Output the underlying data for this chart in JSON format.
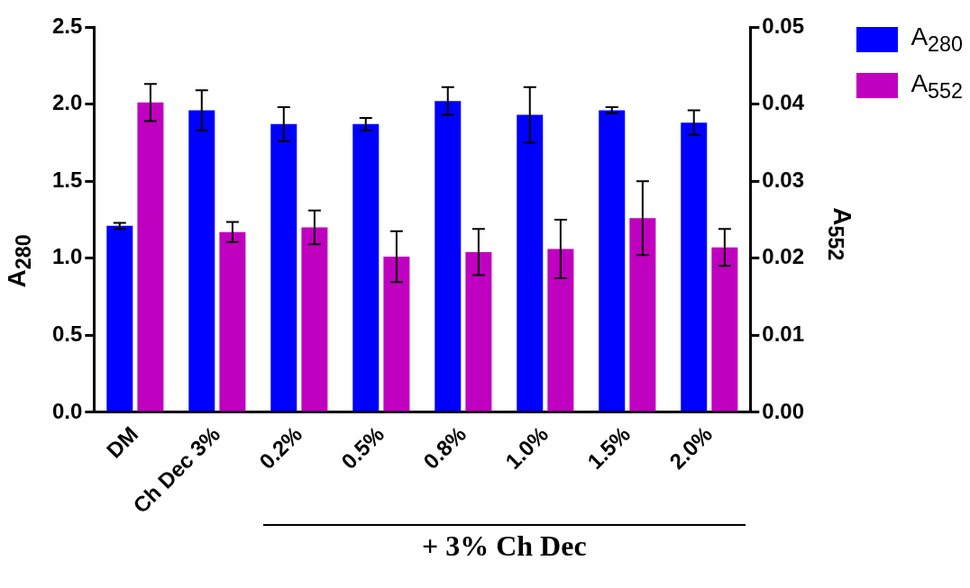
{
  "chart_data": {
    "type": "bar",
    "categories": [
      "DM",
      "Ch Dec 3%",
      "0.2%",
      "0.5%",
      "0.8%",
      "1.0%",
      "1.5%",
      "2.0%"
    ],
    "series": [
      {
        "name": "A$_{280}$",
        "color": "#0000ff",
        "values": [
          1.21,
          1.96,
          1.87,
          1.87,
          2.02,
          1.93,
          1.96,
          1.88
        ],
        "errors": [
          0.02,
          0.13,
          0.11,
          0.04,
          0.09,
          0.18,
          0.02,
          0.08
        ]
      },
      {
        "name": "A$_{552}$",
        "color": "#c000c0",
        "axis": "y2",
        "values": [
          0.0402,
          0.0234,
          0.024,
          0.0202,
          0.0208,
          0.0212,
          0.0252,
          0.0214
        ],
        "errors": [
          0.0024,
          0.0013,
          0.0022,
          0.0033,
          0.003,
          0.0038,
          0.0048,
          0.0024
        ]
      }
    ],
    "ylabel": "A$_{280}$",
    "y2label": "A$_{552}$",
    "ylim": [
      0,
      2.5
    ],
    "yticks": [
      {
        "value": 0,
        "label": "0.0"
      },
      {
        "value": 0.5,
        "label": "0.5"
      },
      {
        "value": 1,
        "label": "1.0"
      },
      {
        "value": 1.5,
        "label": "1.5"
      },
      {
        "value": 2,
        "label": "2.0"
      },
      {
        "value": 2.5,
        "label": "2.5"
      }
    ],
    "y2lim": [
      0,
      0.05
    ],
    "y2ticks": [
      {
        "value": 0,
        "label": "0.00"
      },
      {
        "value": 0.01,
        "label": "0.01"
      },
      {
        "value": 0.02,
        "label": "0.02"
      },
      {
        "value": 0.03,
        "label": "0.03"
      },
      {
        "value": 0.04,
        "label": "0.04"
      },
      {
        "value": 0.05,
        "label": "0.05"
      }
    ],
    "legend": "top right",
    "annotations": [
      "+ 3% Ch Dec"
    ]
  }
}
